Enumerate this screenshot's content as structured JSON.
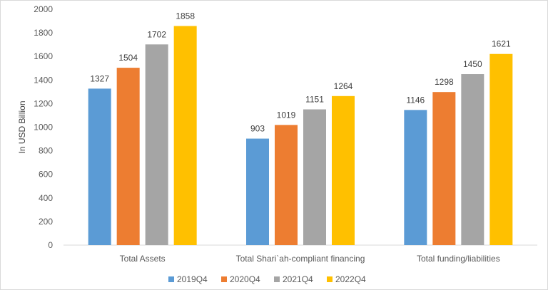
{
  "chart_data": {
    "type": "bar",
    "categories": [
      "Total Assets",
      "Total Shari`ah-compliant financing",
      "Total funding/liabilities"
    ],
    "series": [
      {
        "name": "2019Q4",
        "color": "#5b9bd5",
        "values": [
          1327,
          903,
          1146
        ]
      },
      {
        "name": "2020Q4",
        "color": "#ed7d31",
        "values": [
          1504,
          1019,
          1298
        ]
      },
      {
        "name": "2021Q4",
        "color": "#a5a5a5",
        "values": [
          1702,
          1151,
          1450
        ]
      },
      {
        "name": "2022Q4",
        "color": "#ffc000",
        "values": [
          1858,
          1264,
          1621
        ]
      }
    ],
    "ylabel": "In USD Billion",
    "ylim": [
      0,
      2000
    ],
    "yticks": [
      0,
      200,
      400,
      600,
      800,
      1000,
      1200,
      1400,
      1600,
      1800,
      2000
    ],
    "grid": false,
    "legend": "bottom"
  }
}
